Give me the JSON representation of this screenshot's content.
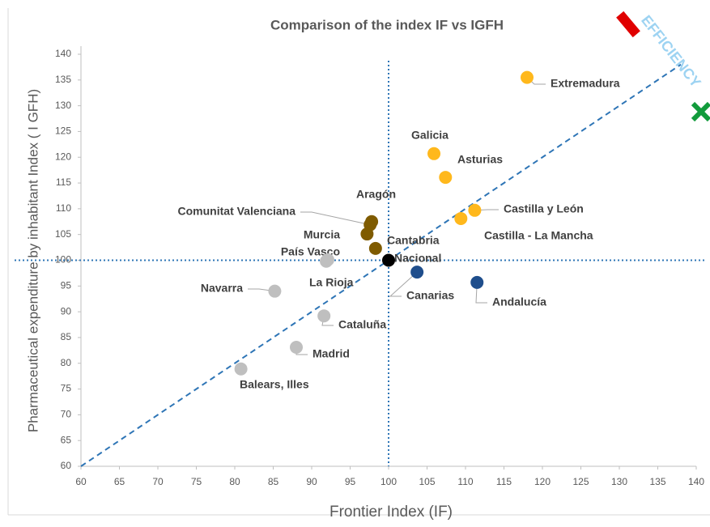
{
  "chart_data": {
    "type": "scatter",
    "title": "Comparison of the index IF vs IGFH",
    "xlabel": "Frontier Index (IF)",
    "ylabel": "Pharmaceutical expenditure by inhabitant Index ( I GFH)",
    "annotation": "EFFICIENCY",
    "labels": [
      "Extremadura",
      "Galicia",
      "Asturias",
      "Castilla y León",
      "Castilla - La Mancha",
      "Aragón",
      "Comunitat Valenciana",
      "Murcia",
      "Cantabria",
      "País Vasco",
      "La Rioja",
      "Nacional",
      "Canarias",
      "Andalucía",
      "Navarra",
      "Cataluña",
      "Madrid",
      "Balears, Illes"
    ],
    "x": [
      118,
      105.9,
      107.4,
      111.2,
      109.4,
      97.8,
      97.6,
      97.2,
      98.3,
      91.9,
      92.1,
      100,
      103.7,
      111.5,
      85.2,
      91.6,
      88,
      80.8
    ],
    "values": [
      135.5,
      120.7,
      116.1,
      109.7,
      108.1,
      107.5,
      106.9,
      105.1,
      102.3,
      99.8,
      100.1,
      100,
      97.7,
      95.7,
      94,
      89.2,
      83.1,
      78.9
    ],
    "colors": [
      "#ffb81c",
      "#ffb81c",
      "#ffb81c",
      "#ffb81c",
      "#ffb81c",
      "#7f5b00",
      "#7f5b00",
      "#7f5b00",
      "#7f5b00",
      "#bfbfbf",
      "#bfbfbf",
      "#000000",
      "#1f4e8c",
      "#1f4e8c",
      "#bfbfbf",
      "#bfbfbf",
      "#bfbfbf",
      "#bfbfbf"
    ],
    "xlim": [
      60,
      140
    ],
    "ylim": [
      60,
      140
    ],
    "xticks": [
      60,
      65,
      70,
      75,
      80,
      85,
      90,
      95,
      100,
      105,
      110,
      115,
      120,
      125,
      130,
      135,
      140
    ],
    "yticks": [
      60,
      65,
      70,
      75,
      80,
      85,
      90,
      95,
      100,
      105,
      110,
      115,
      120,
      125,
      130,
      135,
      140
    ],
    "vline": 100,
    "hline": 100,
    "diagonal": {
      "from": [
        60,
        60
      ],
      "to": [
        138,
        138
      ]
    }
  }
}
